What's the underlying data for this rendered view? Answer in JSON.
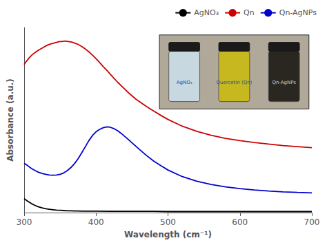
{
  "chart_data": {
    "type": "line",
    "xlabel": "Wavelength (cm⁻¹)",
    "ylabel": "Absorbance (a.u.)",
    "xlim": [
      300,
      700
    ],
    "xticks": [
      300,
      400,
      500,
      600,
      700
    ],
    "ylim": [
      0,
      0.9
    ],
    "tick_labels": "x",
    "grid": false,
    "legend": "upper right",
    "annotations": [
      "AgNO₃",
      "Quercetin (Qn)",
      "Qn-AgNPs"
    ],
    "series": [
      {
        "name": "AgNO₃",
        "color": "#000000",
        "x": [
          300,
          305,
          310,
          315,
          320,
          325,
          330,
          335,
          340,
          345,
          350,
          355,
          360,
          365,
          370,
          375,
          380,
          390,
          400,
          420,
          440,
          460,
          480,
          500,
          550,
          600,
          650,
          700
        ],
        "values": [
          0.068,
          0.055,
          0.044,
          0.035,
          0.028,
          0.023,
          0.019,
          0.016,
          0.014,
          0.012,
          0.011,
          0.01,
          0.009,
          0.009,
          0.008,
          0.008,
          0.007,
          0.007,
          0.007,
          0.006,
          0.006,
          0.006,
          0.006,
          0.005,
          0.005,
          0.005,
          0.005,
          0.005
        ]
      },
      {
        "name": "Qn",
        "color": "#cc0000",
        "x": [
          300,
          303,
          306,
          309,
          312,
          315,
          318,
          321,
          324,
          327,
          330,
          333,
          336,
          339,
          342,
          345,
          348,
          351,
          354,
          357,
          360,
          363,
          366,
          369,
          372,
          375,
          380,
          385,
          390,
          395,
          400,
          405,
          410,
          415,
          420,
          425,
          430,
          435,
          440,
          445,
          450,
          455,
          460,
          470,
          480,
          490,
          500,
          520,
          540,
          560,
          580,
          600,
          620,
          640,
          660,
          680,
          700
        ],
        "values": [
          0.72,
          0.735,
          0.748,
          0.76,
          0.77,
          0.778,
          0.785,
          0.792,
          0.798,
          0.804,
          0.81,
          0.815,
          0.819,
          0.822,
          0.825,
          0.828,
          0.831,
          0.832,
          0.833,
          0.834,
          0.833,
          0.831,
          0.829,
          0.826,
          0.822,
          0.818,
          0.808,
          0.796,
          0.782,
          0.766,
          0.748,
          0.73,
          0.71,
          0.692,
          0.672,
          0.653,
          0.634,
          0.617,
          0.6,
          0.583,
          0.568,
          0.553,
          0.54,
          0.516,
          0.494,
          0.473,
          0.453,
          0.42,
          0.395,
          0.376,
          0.361,
          0.35,
          0.341,
          0.333,
          0.326,
          0.321,
          0.316
        ]
      },
      {
        "name": "Qn-AgNPs",
        "color": "#0000cc",
        "x": [
          300,
          305,
          310,
          315,
          320,
          325,
          330,
          335,
          340,
          345,
          350,
          355,
          360,
          365,
          370,
          375,
          380,
          385,
          390,
          395,
          400,
          405,
          410,
          415,
          420,
          425,
          430,
          435,
          440,
          445,
          450,
          460,
          470,
          480,
          490,
          500,
          520,
          540,
          560,
          580,
          600,
          620,
          640,
          660,
          680,
          700
        ],
        "values": [
          0.24,
          0.228,
          0.215,
          0.205,
          0.196,
          0.19,
          0.186,
          0.183,
          0.182,
          0.183,
          0.186,
          0.193,
          0.204,
          0.219,
          0.238,
          0.262,
          0.29,
          0.32,
          0.35,
          0.375,
          0.393,
          0.405,
          0.413,
          0.417,
          0.415,
          0.408,
          0.398,
          0.385,
          0.37,
          0.355,
          0.339,
          0.308,
          0.278,
          0.251,
          0.228,
          0.207,
          0.175,
          0.153,
          0.137,
          0.125,
          0.117,
          0.11,
          0.105,
          0.101,
          0.098,
          0.096
        ]
      }
    ]
  }
}
